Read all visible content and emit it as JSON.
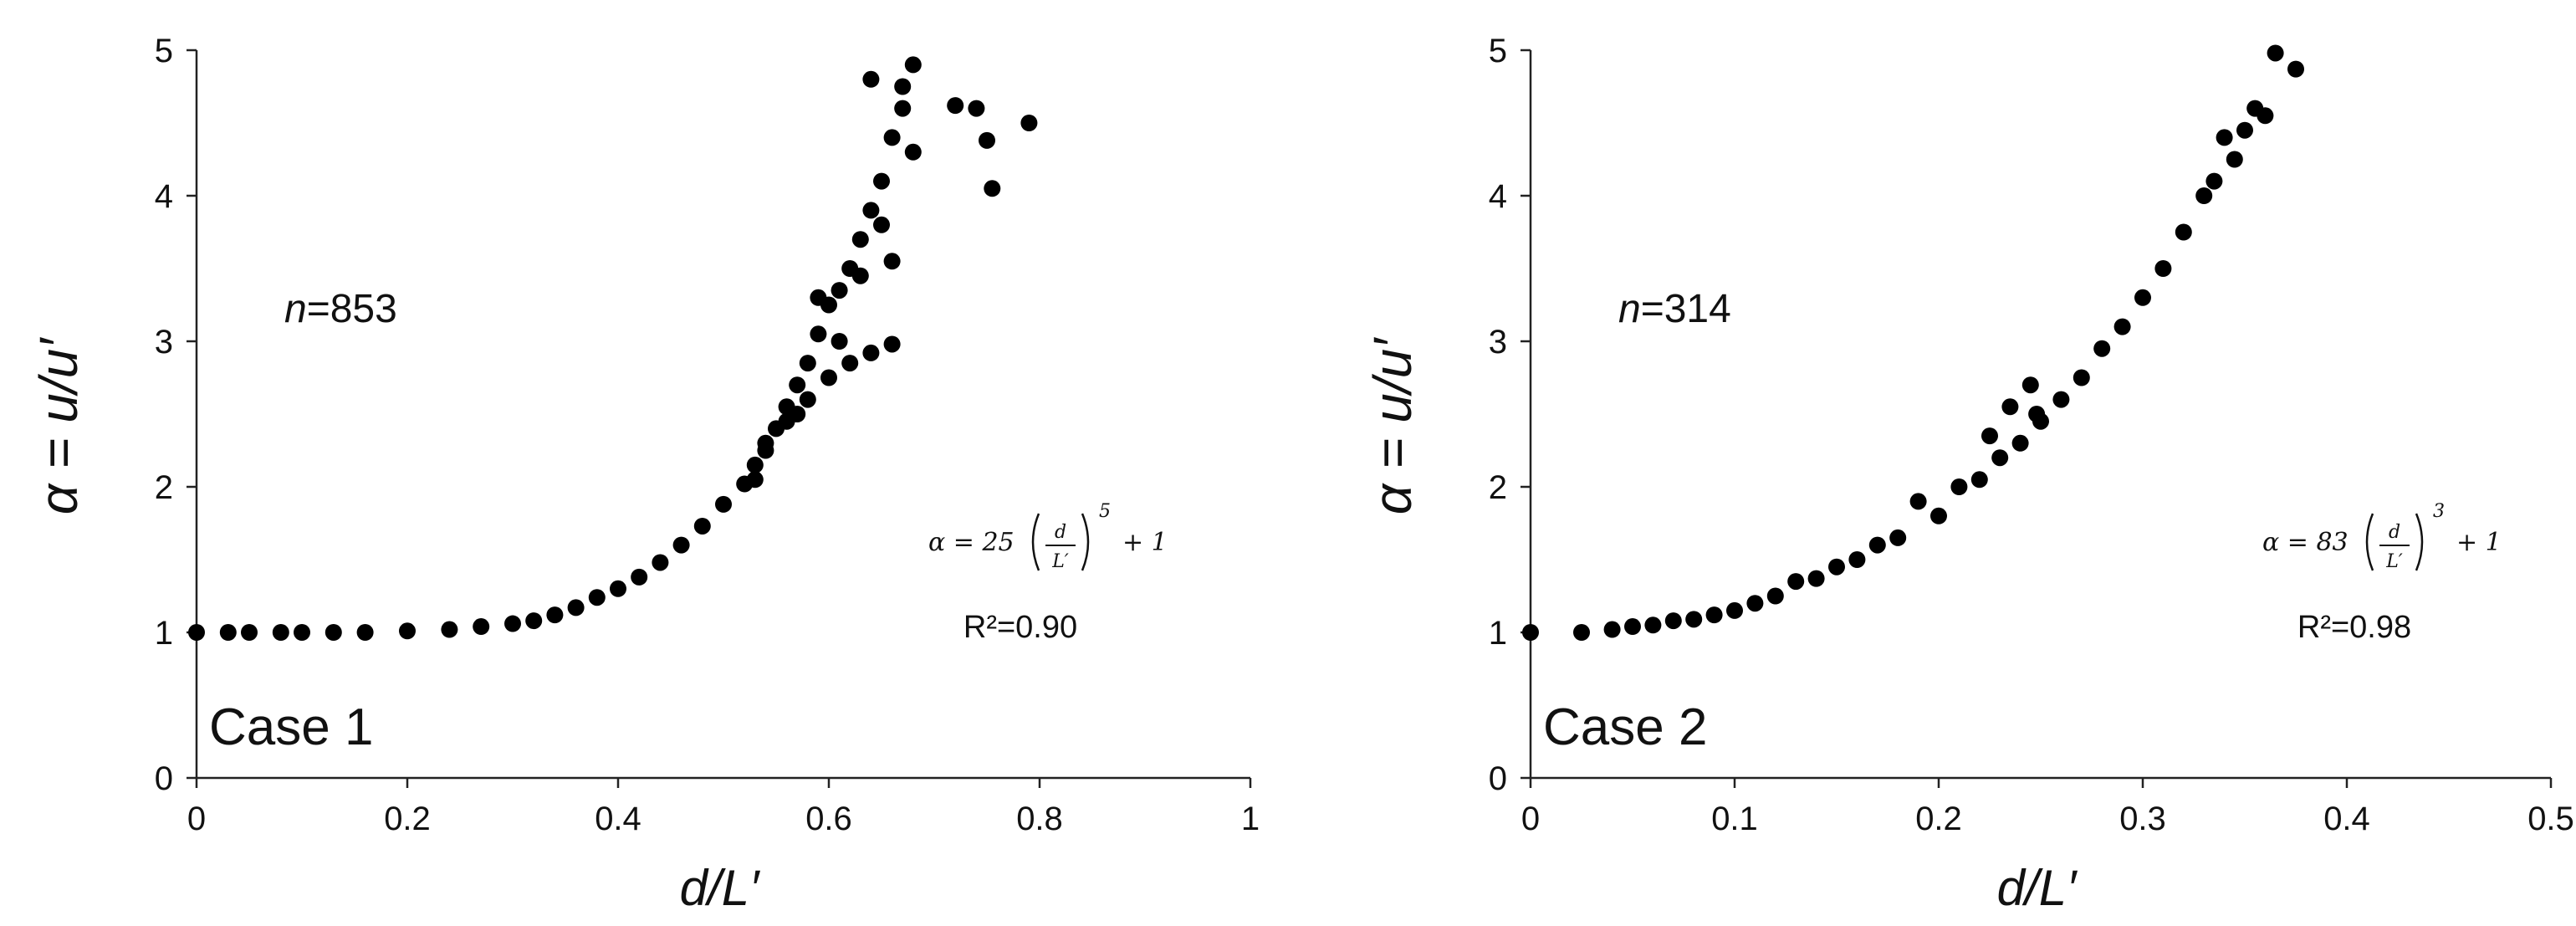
{
  "chart_data": [
    {
      "type": "scatter",
      "title": "",
      "xlabel": "d/L′",
      "ylabel": "α = u/u′",
      "xlim": [
        0,
        1
      ],
      "ylim": [
        0,
        5
      ],
      "xticks": [
        "0",
        "0.2",
        "0.4",
        "0.6",
        "0.8",
        "1"
      ],
      "yticks": [
        "0",
        "1",
        "2",
        "3",
        "4",
        "5"
      ],
      "grid": false,
      "legend": "none",
      "marker_color": "#000000",
      "annotations": {
        "n_label": "n=853",
        "n_italic": "n",
        "n_value": "=853",
        "case_label": "Case 1",
        "equation": "α = 25(d/L′)^5 + 1",
        "eq_prefix": "α = 25",
        "eq_num": "d",
        "eq_den": "L′",
        "eq_exp": "5",
        "eq_suffix": "+ 1",
        "r2_label": "R²=0.90"
      },
      "fit": {
        "a": 25,
        "p": 5
      },
      "points": [
        [
          0.0,
          1.0
        ],
        [
          0.03,
          1.0
        ],
        [
          0.05,
          1.0
        ],
        [
          0.08,
          1.0
        ],
        [
          0.1,
          1.0
        ],
        [
          0.13,
          1.0
        ],
        [
          0.16,
          1.0
        ],
        [
          0.2,
          1.01
        ],
        [
          0.24,
          1.02
        ],
        [
          0.27,
          1.04
        ],
        [
          0.3,
          1.06
        ],
        [
          0.32,
          1.08
        ],
        [
          0.34,
          1.12
        ],
        [
          0.36,
          1.17
        ],
        [
          0.38,
          1.24
        ],
        [
          0.4,
          1.3
        ],
        [
          0.42,
          1.38
        ],
        [
          0.44,
          1.48
        ],
        [
          0.46,
          1.6
        ],
        [
          0.48,
          1.73
        ],
        [
          0.5,
          1.88
        ],
        [
          0.52,
          2.02
        ],
        [
          0.53,
          2.15
        ],
        [
          0.54,
          2.25
        ],
        [
          0.55,
          2.4
        ],
        [
          0.56,
          2.55
        ],
        [
          0.57,
          2.7
        ],
        [
          0.58,
          2.85
        ],
        [
          0.59,
          3.05
        ],
        [
          0.6,
          3.25
        ],
        [
          0.61,
          3.35
        ],
        [
          0.62,
          3.5
        ],
        [
          0.63,
          3.7
        ],
        [
          0.64,
          3.9
        ],
        [
          0.65,
          4.1
        ],
        [
          0.66,
          4.4
        ],
        [
          0.67,
          4.6
        ],
        [
          0.68,
          4.9
        ],
        [
          0.72,
          4.62
        ],
        [
          0.74,
          4.6
        ],
        [
          0.75,
          4.38
        ],
        [
          0.755,
          4.05
        ],
        [
          0.79,
          4.5
        ],
        [
          0.66,
          2.98
        ],
        [
          0.64,
          2.92
        ],
        [
          0.62,
          2.85
        ],
        [
          0.6,
          2.75
        ],
        [
          0.58,
          2.6
        ],
        [
          0.56,
          2.45
        ],
        [
          0.54,
          2.3
        ],
        [
          0.59,
          3.3
        ],
        [
          0.61,
          3.0
        ],
        [
          0.63,
          3.45
        ],
        [
          0.65,
          3.8
        ],
        [
          0.67,
          4.75
        ],
        [
          0.68,
          4.3
        ],
        [
          0.64,
          4.8
        ],
        [
          0.66,
          3.55
        ],
        [
          0.57,
          2.5
        ],
        [
          0.53,
          2.05
        ]
      ]
    },
    {
      "type": "scatter",
      "title": "",
      "xlabel": "d/L′",
      "ylabel": "α = u/u′",
      "xlim": [
        0,
        0.5
      ],
      "ylim": [
        0,
        5
      ],
      "xticks": [
        "0",
        "0.1",
        "0.2",
        "0.3",
        "0.4",
        "0.5"
      ],
      "yticks": [
        "0",
        "1",
        "2",
        "3",
        "4",
        "5"
      ],
      "grid": false,
      "legend": "none",
      "marker_color": "#000000",
      "annotations": {
        "n_label": "n=314",
        "n_italic": "n",
        "n_value": "=314",
        "case_label": "Case 2",
        "equation": "α = 83(d/L′)^3 + 1",
        "eq_prefix": "α = 83",
        "eq_num": "d",
        "eq_den": "L′",
        "eq_exp": "3",
        "eq_suffix": "+ 1",
        "r2_label": "R²=0.98"
      },
      "fit": {
        "a": 83,
        "p": 3
      },
      "points": [
        [
          0.0,
          1.0
        ],
        [
          0.025,
          1.0
        ],
        [
          0.04,
          1.02
        ],
        [
          0.06,
          1.05
        ],
        [
          0.08,
          1.09
        ],
        [
          0.1,
          1.15
        ],
        [
          0.12,
          1.25
        ],
        [
          0.14,
          1.37
        ],
        [
          0.16,
          1.5
        ],
        [
          0.18,
          1.65
        ],
        [
          0.2,
          1.8
        ],
        [
          0.22,
          2.05
        ],
        [
          0.24,
          2.3
        ],
        [
          0.26,
          2.6
        ],
        [
          0.28,
          2.95
        ],
        [
          0.3,
          3.3
        ],
        [
          0.32,
          3.75
        ],
        [
          0.335,
          4.1
        ],
        [
          0.34,
          4.4
        ],
        [
          0.35,
          4.45
        ],
        [
          0.36,
          4.55
        ],
        [
          0.365,
          4.98
        ],
        [
          0.375,
          4.87
        ],
        [
          0.225,
          2.35
        ],
        [
          0.235,
          2.55
        ],
        [
          0.245,
          2.7
        ],
        [
          0.248,
          2.5
        ],
        [
          0.19,
          1.9
        ],
        [
          0.17,
          1.6
        ],
        [
          0.15,
          1.45
        ],
        [
          0.13,
          1.35
        ],
        [
          0.11,
          1.2
        ],
        [
          0.09,
          1.12
        ],
        [
          0.07,
          1.08
        ],
        [
          0.05,
          1.04
        ],
        [
          0.21,
          2.0
        ],
        [
          0.23,
          2.2
        ],
        [
          0.25,
          2.45
        ],
        [
          0.27,
          2.75
        ],
        [
          0.29,
          3.1
        ],
        [
          0.31,
          3.5
        ],
        [
          0.33,
          4.0
        ],
        [
          0.345,
          4.25
        ],
        [
          0.355,
          4.6
        ]
      ]
    }
  ]
}
